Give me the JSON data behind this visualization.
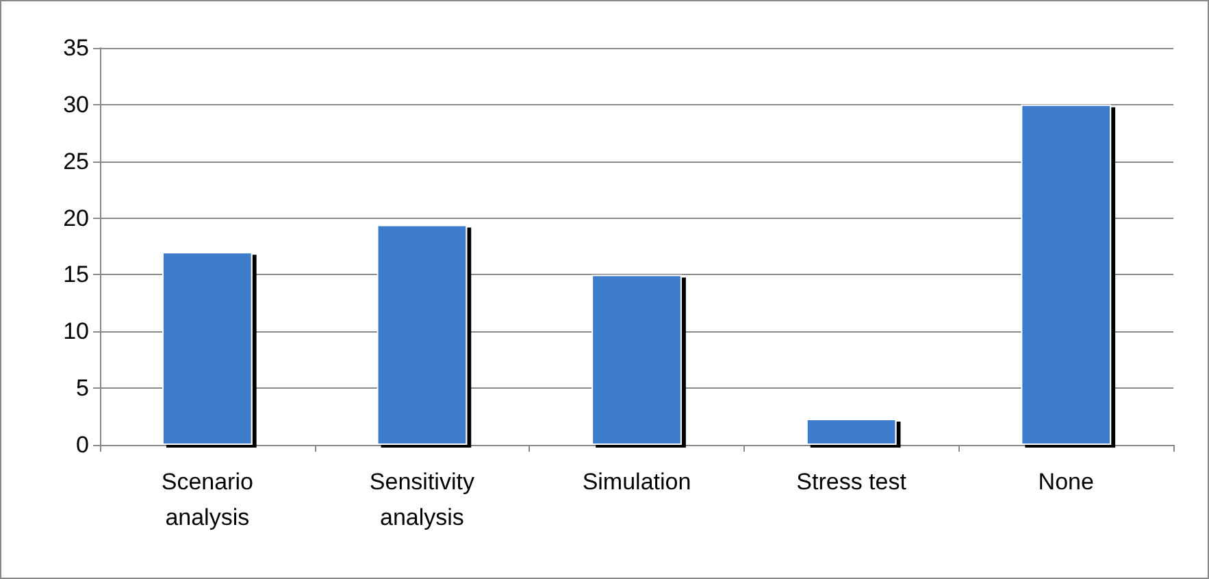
{
  "chart_data": {
    "type": "bar",
    "categories": [
      "Scenario\nanalysis",
      "Sensitivity\nanalysis",
      "Simulation",
      "Stress test",
      "None"
    ],
    "values": [
      17,
      19.4,
      15,
      2.3,
      30
    ],
    "color": "#3d7bcb",
    "ylim": [
      0,
      35
    ],
    "yticks": [
      0,
      5,
      10,
      15,
      20,
      25,
      30,
      35
    ],
    "grid": "y"
  }
}
